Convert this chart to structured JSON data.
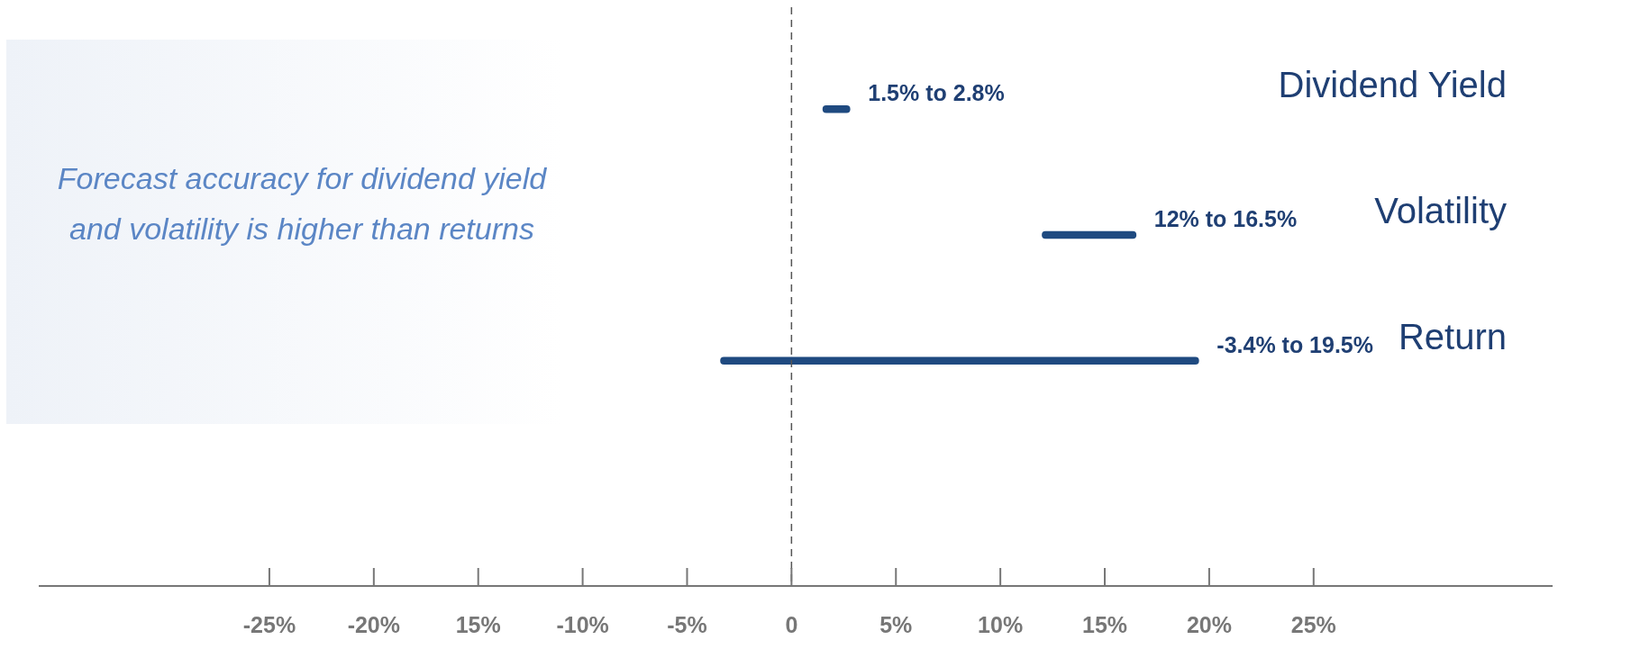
{
  "chart_data": {
    "type": "bar",
    "orientation": "horizontal",
    "categories": [
      "Dividend Yield",
      "Volatility",
      "Return"
    ],
    "base": [
      1.5,
      12,
      -3.4
    ],
    "values": [
      1.3,
      4.5,
      22.9
    ],
    "color": "#1f4a80",
    "xlim": [
      -36,
      36.4
    ],
    "xticks": [
      {
        "value": -25,
        "label": "-25%"
      },
      {
        "value": -20,
        "label": "-20%"
      },
      {
        "value": -15,
        "label": "15%"
      },
      {
        "value": -10,
        "label": "-10%"
      },
      {
        "value": -5,
        "label": "-5%"
      },
      0,
      {
        "value": 5,
        "label": "5%"
      },
      {
        "value": 10,
        "label": "10%"
      },
      {
        "value": 15,
        "label": "15%"
      },
      {
        "value": 20,
        "label": "20%"
      },
      {
        "value": 25,
        "label": "25%"
      }
    ],
    "ref_lines": [
      {
        "axis": "x",
        "value": 0,
        "color": "#555555",
        "line_style": "dashed"
      }
    ],
    "annotations": [
      "Forecast accuracy for dividend yield and volatility is higher than returns",
      "1.5% to 2.8%",
      "12% to 16.5%",
      "-3.4% to 19.5%"
    ],
    "grid": false,
    "legend": false
  }
}
